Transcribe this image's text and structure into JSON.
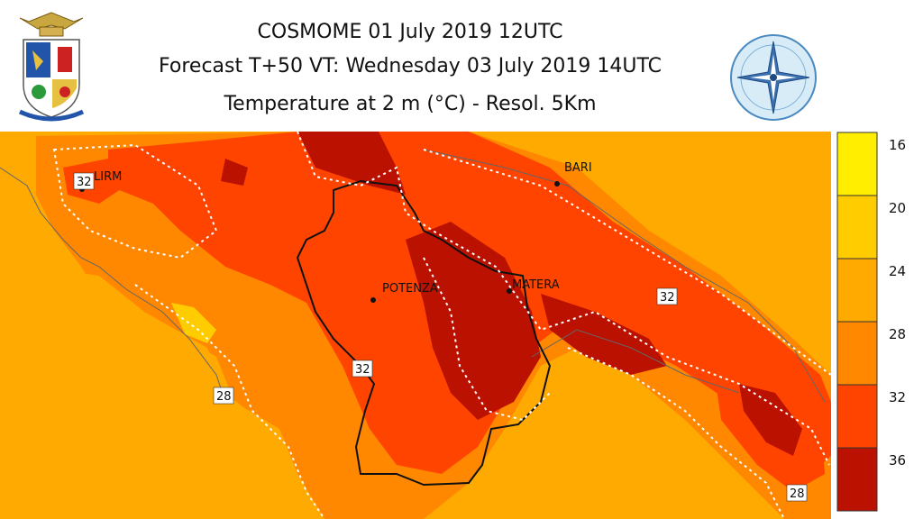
{
  "title": {
    "line1": "COSMOME 01 July 2019 12UTC",
    "line2": "Forecast T+50 VT: Wednesday 03 July 2019 14UTC",
    "line3": "Temperature at 2 m (°C) - Resol. 5Km"
  },
  "logos": {
    "left": "air-force-coat-of-arms",
    "right": "weather-service-emblem"
  },
  "colors": {
    "below_20": "#ffee00",
    "c20_24": "#ffcc00",
    "c24_28": "#ffaa00",
    "c28_32": "#ff8800",
    "c32_36": "#ff4400",
    "above_36": "#bb1100",
    "sea": "#ffaa00"
  },
  "places": {
    "lirm": "LIRM",
    "bari": "BARI",
    "potenza": "POTENZA",
    "matera": "MATERA"
  },
  "contour_labels": [
    {
      "id": "lirm",
      "value": "32"
    },
    {
      "id": "bari",
      "value": "32"
    },
    {
      "id": "potenza",
      "value": "32"
    },
    {
      "id": "coast",
      "value": "28"
    },
    {
      "id": "salento",
      "value": "28"
    }
  ],
  "legend": {
    "unit": "°C",
    "ticks": [
      "16",
      "20",
      "24",
      "28",
      "32",
      "36"
    ]
  }
}
